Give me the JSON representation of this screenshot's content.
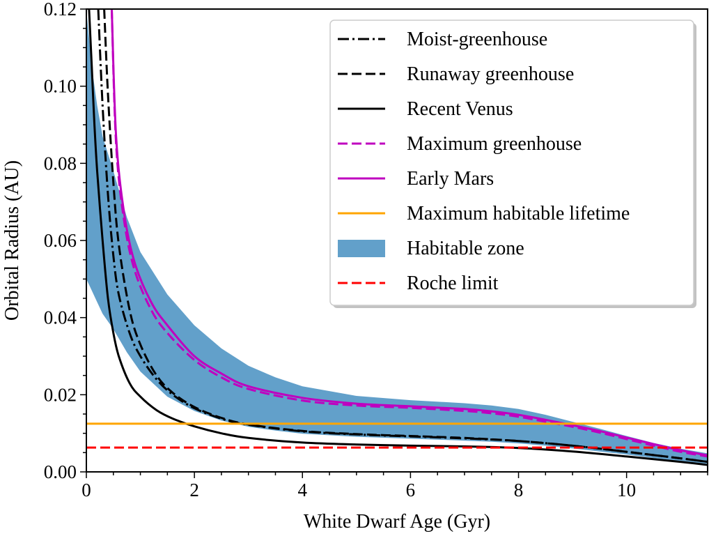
{
  "chart_data": {
    "type": "line",
    "title": "",
    "xlabel": "White Dwarf Age (Gyr)",
    "ylabel": "Orbital Radius (AU)",
    "xlim": [
      0,
      11.5
    ],
    "ylim": [
      0.0,
      0.12
    ],
    "xticks": [
      0,
      2,
      4,
      6,
      8,
      10
    ],
    "xtick_labels": [
      "0",
      "2",
      "4",
      "6",
      "8",
      "10"
    ],
    "yticks": [
      0.0,
      0.02,
      0.04,
      0.06,
      0.08,
      0.1,
      0.12
    ],
    "ytick_labels": [
      "0.00",
      "0.02",
      "0.04",
      "0.06",
      "0.08",
      "0.10",
      "0.12"
    ],
    "x_minor_step": 0.5,
    "y_minor_step": 0.005,
    "grid": false,
    "legend_position": "top-right",
    "series": [
      {
        "name": "Moist-greenhouse",
        "color": "#000000",
        "style": "dashdot",
        "x": [
          0.22,
          0.3,
          0.4,
          0.5,
          0.6,
          0.8,
          1.0,
          1.3,
          1.6,
          2.0,
          2.5,
          3.0,
          4.0,
          5.0,
          6.0,
          7.0,
          8.0,
          9.0,
          10.0,
          11.0,
          11.5
        ],
        "y": [
          0.12,
          0.095,
          0.072,
          0.056,
          0.046,
          0.036,
          0.03,
          0.024,
          0.02,
          0.0165,
          0.0138,
          0.0122,
          0.0105,
          0.0097,
          0.0092,
          0.0087,
          0.008,
          0.0068,
          0.0052,
          0.0035,
          0.0026
        ]
      },
      {
        "name": "Runaway greenhouse",
        "color": "#000000",
        "style": "dashed",
        "x": [
          0.33,
          0.4,
          0.5,
          0.6,
          0.8,
          1.0,
          1.3,
          1.6,
          2.0,
          2.5,
          3.0,
          4.0,
          5.0,
          6.0,
          7.0,
          8.0,
          9.0,
          10.0,
          11.0,
          11.5
        ],
        "y": [
          0.12,
          0.098,
          0.075,
          0.059,
          0.042,
          0.033,
          0.025,
          0.0205,
          0.0168,
          0.014,
          0.0123,
          0.0106,
          0.0098,
          0.0093,
          0.0088,
          0.008,
          0.0068,
          0.0052,
          0.0035,
          0.0026
        ]
      },
      {
        "name": "Recent Venus",
        "color": "#000000",
        "style": "solid",
        "x": [
          0.05,
          0.1,
          0.15,
          0.2,
          0.3,
          0.4,
          0.5,
          0.6,
          0.8,
          1.0,
          1.3,
          1.6,
          2.0,
          2.5,
          3.0,
          4.0,
          5.0,
          6.0,
          7.0,
          8.0,
          9.0,
          10.0,
          11.0,
          11.5
        ],
        "y": [
          0.12,
          0.105,
          0.09,
          0.078,
          0.06,
          0.045,
          0.036,
          0.03,
          0.023,
          0.0195,
          0.016,
          0.0138,
          0.0118,
          0.01,
          0.0088,
          0.0076,
          0.0071,
          0.0068,
          0.0066,
          0.0062,
          0.0053,
          0.004,
          0.0026,
          0.0018
        ]
      },
      {
        "name": "Maximum greenhouse",
        "color": "#bf00bf",
        "style": "dashed",
        "x": [
          0.47,
          0.55,
          0.7,
          0.9,
          1.2,
          1.5,
          2.0,
          2.5,
          3.0,
          4.0,
          5.0,
          6.0,
          7.0,
          7.5,
          8.0,
          8.5,
          9.0,
          9.5,
          10.0,
          10.5,
          11.0,
          11.5
        ],
        "y": [
          0.12,
          0.085,
          0.065,
          0.052,
          0.042,
          0.036,
          0.029,
          0.0245,
          0.0215,
          0.0185,
          0.0172,
          0.0166,
          0.0158,
          0.0152,
          0.0143,
          0.013,
          0.0117,
          0.0102,
          0.0085,
          0.0068,
          0.0052,
          0.004
        ]
      },
      {
        "name": "Early Mars",
        "color": "#bf00bf",
        "style": "solid",
        "x": [
          0.47,
          0.55,
          0.7,
          0.9,
          1.2,
          1.5,
          2.0,
          2.5,
          3.0,
          4.0,
          5.0,
          6.0,
          7.0,
          7.5,
          8.0,
          8.5,
          9.0,
          9.5,
          10.0,
          10.5,
          11.0,
          11.5
        ],
        "y": [
          0.12,
          0.087,
          0.067,
          0.054,
          0.044,
          0.038,
          0.03,
          0.0255,
          0.0222,
          0.0192,
          0.0177,
          0.017,
          0.0163,
          0.0157,
          0.0148,
          0.0135,
          0.0121,
          0.0106,
          0.0089,
          0.0072,
          0.0056,
          0.0043
        ]
      },
      {
        "name": "Maximum habitable lifetime",
        "color": "#ffa500",
        "style": "solid",
        "x": [
          0,
          11.5
        ],
        "y": [
          0.0125,
          0.0125
        ]
      },
      {
        "name": "Roche limit",
        "color": "#ff0000",
        "style": "dashed",
        "x": [
          0,
          11.5
        ],
        "y": [
          0.0063,
          0.0063
        ]
      }
    ],
    "habitable_zone": {
      "name": "Habitable zone",
      "color": "#62a0ca",
      "x": [
        0.0,
        0.1,
        0.2,
        0.3,
        0.5,
        0.75,
        1.0,
        1.5,
        2.0,
        2.5,
        3.0,
        3.5,
        4.0,
        5.0,
        6.0,
        7.0,
        7.5,
        8.0,
        8.5,
        9.0,
        9.5,
        10.0,
        10.5,
        11.0,
        11.5
      ],
      "upper": [
        0.12,
        0.105,
        0.095,
        0.087,
        0.078,
        0.066,
        0.057,
        0.046,
        0.038,
        0.032,
        0.0275,
        0.0245,
        0.0222,
        0.0197,
        0.0186,
        0.0178,
        0.0172,
        0.0163,
        0.0148,
        0.013,
        0.0112,
        0.0093,
        0.0075,
        0.006,
        0.0048
      ],
      "lower": [
        0.05,
        0.047,
        0.044,
        0.041,
        0.037,
        0.031,
        0.026,
        0.0195,
        0.0158,
        0.0133,
        0.0117,
        0.0107,
        0.0099,
        0.0091,
        0.0086,
        0.0081,
        0.0078,
        0.0074,
        0.0068,
        0.0061,
        0.0053,
        0.0045,
        0.0036,
        0.0028,
        0.0021
      ]
    },
    "legend": [
      {
        "label": "Moist-greenhouse",
        "color": "#000000",
        "style": "dashdot"
      },
      {
        "label": "Runaway greenhouse",
        "color": "#000000",
        "style": "dashed"
      },
      {
        "label": "Recent Venus",
        "color": "#000000",
        "style": "solid"
      },
      {
        "label": "Maximum greenhouse",
        "color": "#bf00bf",
        "style": "dashed"
      },
      {
        "label": "Early Mars",
        "color": "#bf00bf",
        "style": "solid"
      },
      {
        "label": "Maximum habitable lifetime",
        "color": "#ffa500",
        "style": "solid"
      },
      {
        "label": "Habitable zone",
        "color": "#62a0ca",
        "style": "patch"
      },
      {
        "label": "Roche limit",
        "color": "#ff0000",
        "style": "dashed"
      }
    ]
  }
}
